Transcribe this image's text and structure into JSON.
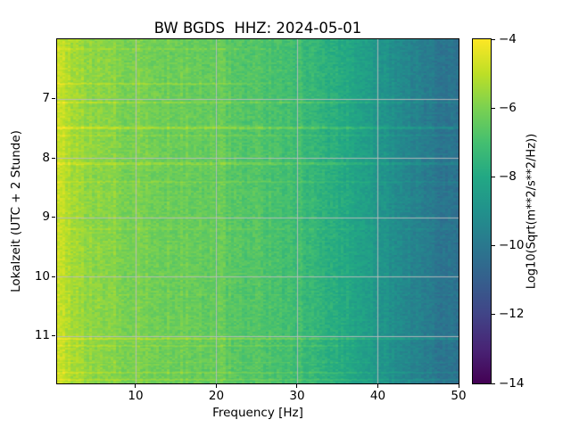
{
  "chart_data": {
    "type": "heatmap",
    "subtype": "seismic-spectrogram",
    "title": "BW BGDS  HHZ: 2024-05-01",
    "xlabel": "Frequency [Hz]",
    "ylabel": "Lokalzeit (UTC + 2 Stunde)",
    "colorbar_label": "Log10(Sqrt(m**2/s**2/Hz))",
    "x_range": [
      0.28,
      50
    ],
    "y_range": [
      6.0,
      11.8
    ],
    "x_ticks": [
      10,
      20,
      30,
      40,
      50
    ],
    "x_tick_labels": [
      "10",
      "20",
      "30",
      "40",
      "50"
    ],
    "y_ticks": [
      7,
      8,
      9,
      10,
      11
    ],
    "y_tick_labels": [
      "7",
      "8",
      "9",
      "10",
      "11"
    ],
    "colorbar_range_top_to_bottom": [
      -4,
      -14
    ],
    "colorbar_ticks": [
      -4,
      -6,
      -8,
      -10,
      -12,
      -14
    ],
    "colorbar_tick_labels": [
      "−4",
      "−6",
      "−8",
      "−10",
      "−12",
      "−14"
    ],
    "grid": true,
    "grid_color": "#bdbdbd",
    "axes_color": "#000000",
    "background": "#ffffff",
    "colormap": "viridis",
    "colormap_stops": [
      {
        "u": 0.0,
        "color": "#440154"
      },
      {
        "u": 0.1,
        "color": "#482475"
      },
      {
        "u": 0.2,
        "color": "#414487"
      },
      {
        "u": 0.3,
        "color": "#355f8d"
      },
      {
        "u": 0.4,
        "color": "#2a788e"
      },
      {
        "u": 0.5,
        "color": "#21918c"
      },
      {
        "u": 0.6,
        "color": "#22a884"
      },
      {
        "u": 0.7,
        "color": "#44bf70"
      },
      {
        "u": 0.8,
        "color": "#7ad151"
      },
      {
        "u": 0.9,
        "color": "#bddf26"
      },
      {
        "u": 1.0,
        "color": "#fde725"
      }
    ],
    "spectral_profile": {
      "freq": [
        0.3,
        0.8,
        1.5,
        3,
        6,
        10,
        15,
        20,
        25,
        30,
        34,
        38,
        42,
        46,
        50
      ],
      "log_amp": [
        -4.55,
        -4.8,
        -5.2,
        -5.5,
        -5.75,
        -5.95,
        -6.15,
        -6.45,
        -6.75,
        -7.15,
        -7.65,
        -8.3,
        -9.1,
        -9.8,
        -10.35
      ]
    },
    "spectral_lines": [
      {
        "freq": 30.4,
        "width": 0.25,
        "boost": 0.4
      },
      {
        "freq": 20.6,
        "width": 0.5,
        "boost": 0.18
      },
      {
        "freq": 12.8,
        "width": 1.8,
        "boost": -0.12
      },
      {
        "freq": 8.8,
        "width": 0.9,
        "boost": -0.1
      }
    ],
    "events": [
      {
        "time": 6.17,
        "duration": 0.03,
        "boost": 0.35,
        "fmax": 25
      },
      {
        "time": 6.75,
        "duration": 0.03,
        "boost": 0.5,
        "fmax": 22
      },
      {
        "time": 7.07,
        "duration": 0.035,
        "boost": 0.55,
        "fmax": 50
      },
      {
        "time": 7.5,
        "duration": 0.04,
        "boost": 0.7,
        "fmax": 50
      },
      {
        "time": 7.62,
        "duration": 0.025,
        "boost": 0.35,
        "fmax": 50
      },
      {
        "time": 8.1,
        "duration": 0.05,
        "boost": 0.55,
        "fmax": 50
      },
      {
        "time": 8.4,
        "duration": 0.03,
        "boost": 0.35,
        "fmax": 50
      },
      {
        "time": 9.2,
        "duration": 0.025,
        "boost": 0.22,
        "fmax": 50
      },
      {
        "time": 10.3,
        "duration": 0.02,
        "boost": 0.2,
        "fmax": 50
      },
      {
        "time": 11.05,
        "duration": 0.04,
        "boost": 0.75,
        "fmax": 50
      },
      {
        "time": 11.17,
        "duration": 0.03,
        "boost": 0.45,
        "fmax": 35
      },
      {
        "time": 11.45,
        "duration": 0.02,
        "boost": 0.3,
        "fmax": 50
      },
      {
        "time": 11.62,
        "duration": 0.035,
        "boost": 0.5,
        "fmax": 50
      },
      {
        "time": 11.74,
        "duration": 0.03,
        "boost": 0.45,
        "fmax": 50
      }
    ],
    "noise": {
      "cell": 0.32,
      "column": 0.16,
      "row": 0.06
    }
  }
}
